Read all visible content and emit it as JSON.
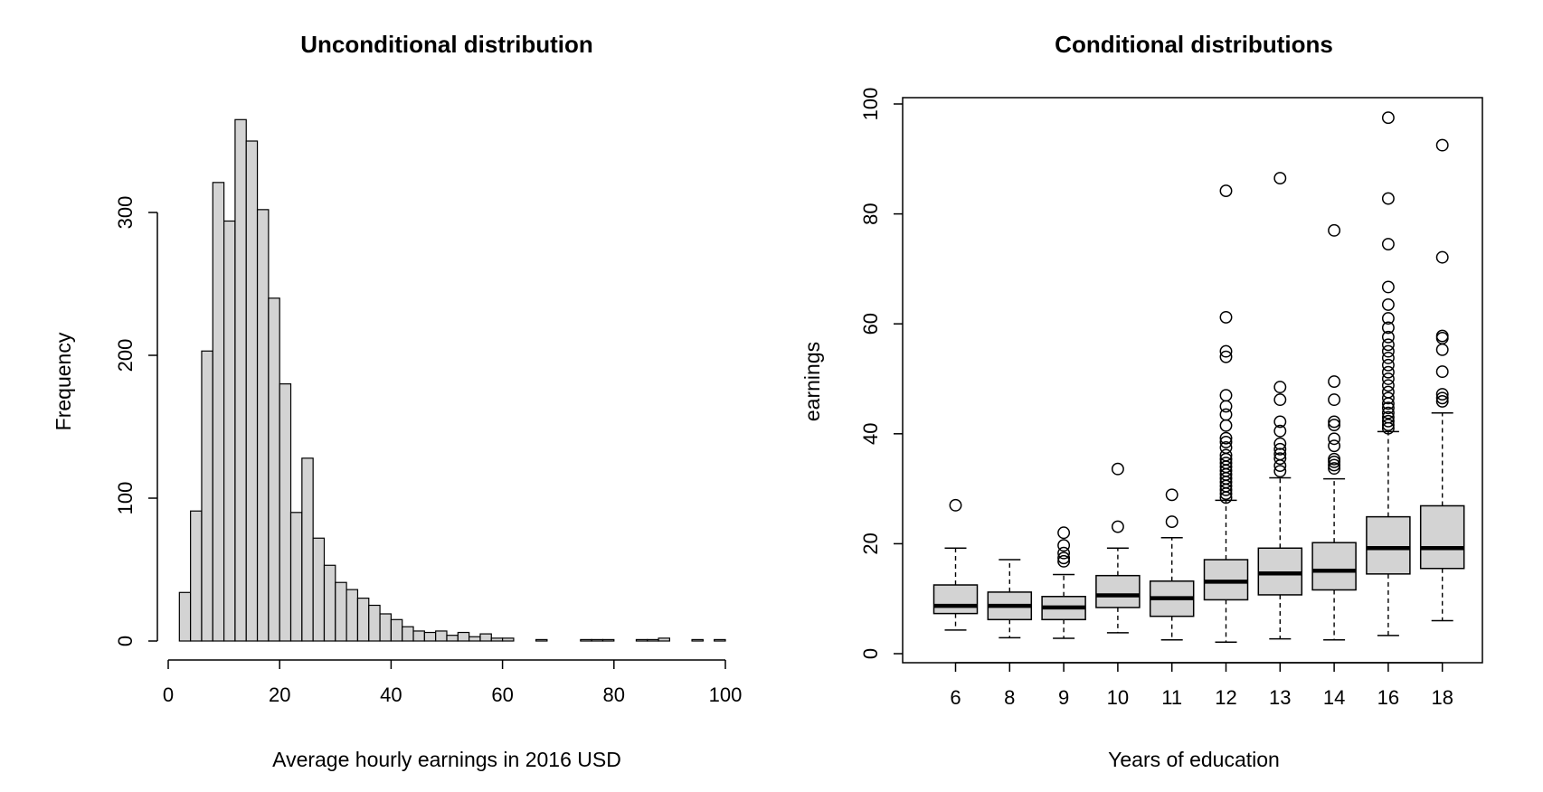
{
  "chart_data": [
    {
      "type": "bar",
      "subtype": "histogram",
      "title": "Unconditional distribution",
      "xlabel": "Average hourly earnings in 2016 USD",
      "ylabel": "Frequency",
      "xlim": [
        0,
        100
      ],
      "ylim": [
        0,
        365
      ],
      "xticks": [
        0,
        20,
        40,
        60,
        80,
        100
      ],
      "yticks": [
        0,
        100,
        200,
        300
      ],
      "grid": false,
      "bin_width": 2,
      "bin_start": 2,
      "values": [
        34,
        91,
        203,
        321,
        294,
        365,
        350,
        302,
        240,
        180,
        90,
        128,
        72,
        53,
        41,
        36,
        30,
        25,
        19,
        15,
        10,
        7,
        6,
        7,
        4,
        6,
        3,
        5,
        2,
        2,
        0,
        0,
        1,
        0,
        0,
        0,
        1,
        1,
        1,
        0,
        0,
        1,
        1,
        2,
        0,
        0,
        1,
        0,
        1
      ]
    },
    {
      "type": "box",
      "title": "Conditional distributions",
      "xlabel": "Years of education",
      "ylabel": "earnings",
      "ylim": [
        0,
        100
      ],
      "yticks": [
        0,
        20,
        40,
        60,
        80,
        100
      ],
      "grid": false,
      "categories": [
        "6",
        "8",
        "9",
        "10",
        "11",
        "12",
        "13",
        "14",
        "16",
        "18"
      ],
      "boxes": [
        {
          "lower_whisker": 4.3,
          "q1": 7.3,
          "median": 8.7,
          "q3": 12.5,
          "upper_whisker": 19.2,
          "outliers": [
            27
          ]
        },
        {
          "lower_whisker": 2.9,
          "q1": 6.2,
          "median": 8.7,
          "q3": 11.2,
          "upper_whisker": 17.1,
          "outliers": []
        },
        {
          "lower_whisker": 2.8,
          "q1": 6.2,
          "median": 8.4,
          "q3": 10.4,
          "upper_whisker": 14.4,
          "outliers": [
            16.8,
            17.4,
            18.3,
            19.7,
            22
          ]
        },
        {
          "lower_whisker": 3.8,
          "q1": 8.4,
          "median": 10.6,
          "q3": 14.2,
          "upper_whisker": 19.2,
          "outliers": [
            23.1,
            33.6
          ]
        },
        {
          "lower_whisker": 2.5,
          "q1": 6.8,
          "median": 10.1,
          "q3": 13.2,
          "upper_whisker": 21.1,
          "outliers": [
            24,
            28.9
          ]
        },
        {
          "lower_whisker": 2.1,
          "q1": 9.8,
          "median": 13.1,
          "q3": 17.1,
          "upper_whisker": 27.9,
          "outliers": [
            28.4,
            29.1,
            29.8,
            30.5,
            31.2,
            31.9,
            32.6,
            33.3,
            34,
            34.7,
            35.4,
            36.1,
            37.5,
            38.5,
            39.2,
            41.5,
            43.5,
            45,
            47,
            54,
            55,
            61.2,
            84.2
          ]
        },
        {
          "lower_whisker": 2.7,
          "q1": 10.7,
          "median": 14.6,
          "q3": 19.2,
          "upper_whisker": 32,
          "outliers": [
            33.2,
            34.2,
            35.5,
            36.3,
            37.2,
            38.2,
            40.5,
            42.2,
            46.2,
            48.5,
            86.5
          ]
        },
        {
          "lower_whisker": 2.5,
          "q1": 11.6,
          "median": 15.1,
          "q3": 20.2,
          "upper_whisker": 31.8,
          "outliers": [
            33.7,
            34.3,
            34.9,
            35.4,
            37.8,
            39.1,
            41.6,
            42.2,
            46.2,
            49.5,
            77
          ]
        },
        {
          "lower_whisker": 3.3,
          "q1": 14.5,
          "median": 19.2,
          "q3": 24.9,
          "upper_whisker": 40.4,
          "outliers": [
            41,
            41.6,
            42.3,
            43,
            43.8,
            44.7,
            45.5,
            46.5,
            47.6,
            48.8,
            50,
            51.2,
            52.5,
            53.8,
            55,
            56.2,
            57.6,
            59.3,
            61,
            63.5,
            66.7,
            74.5,
            82.8,
            97.5
          ]
        },
        {
          "lower_whisker": 6,
          "q1": 15.5,
          "median": 19.2,
          "q3": 26.9,
          "upper_whisker": 43.8,
          "outliers": [
            45.9,
            46.5,
            47.2,
            51.3,
            55.3,
            57.4,
            57.8,
            72.1,
            92.5
          ]
        }
      ]
    }
  ]
}
